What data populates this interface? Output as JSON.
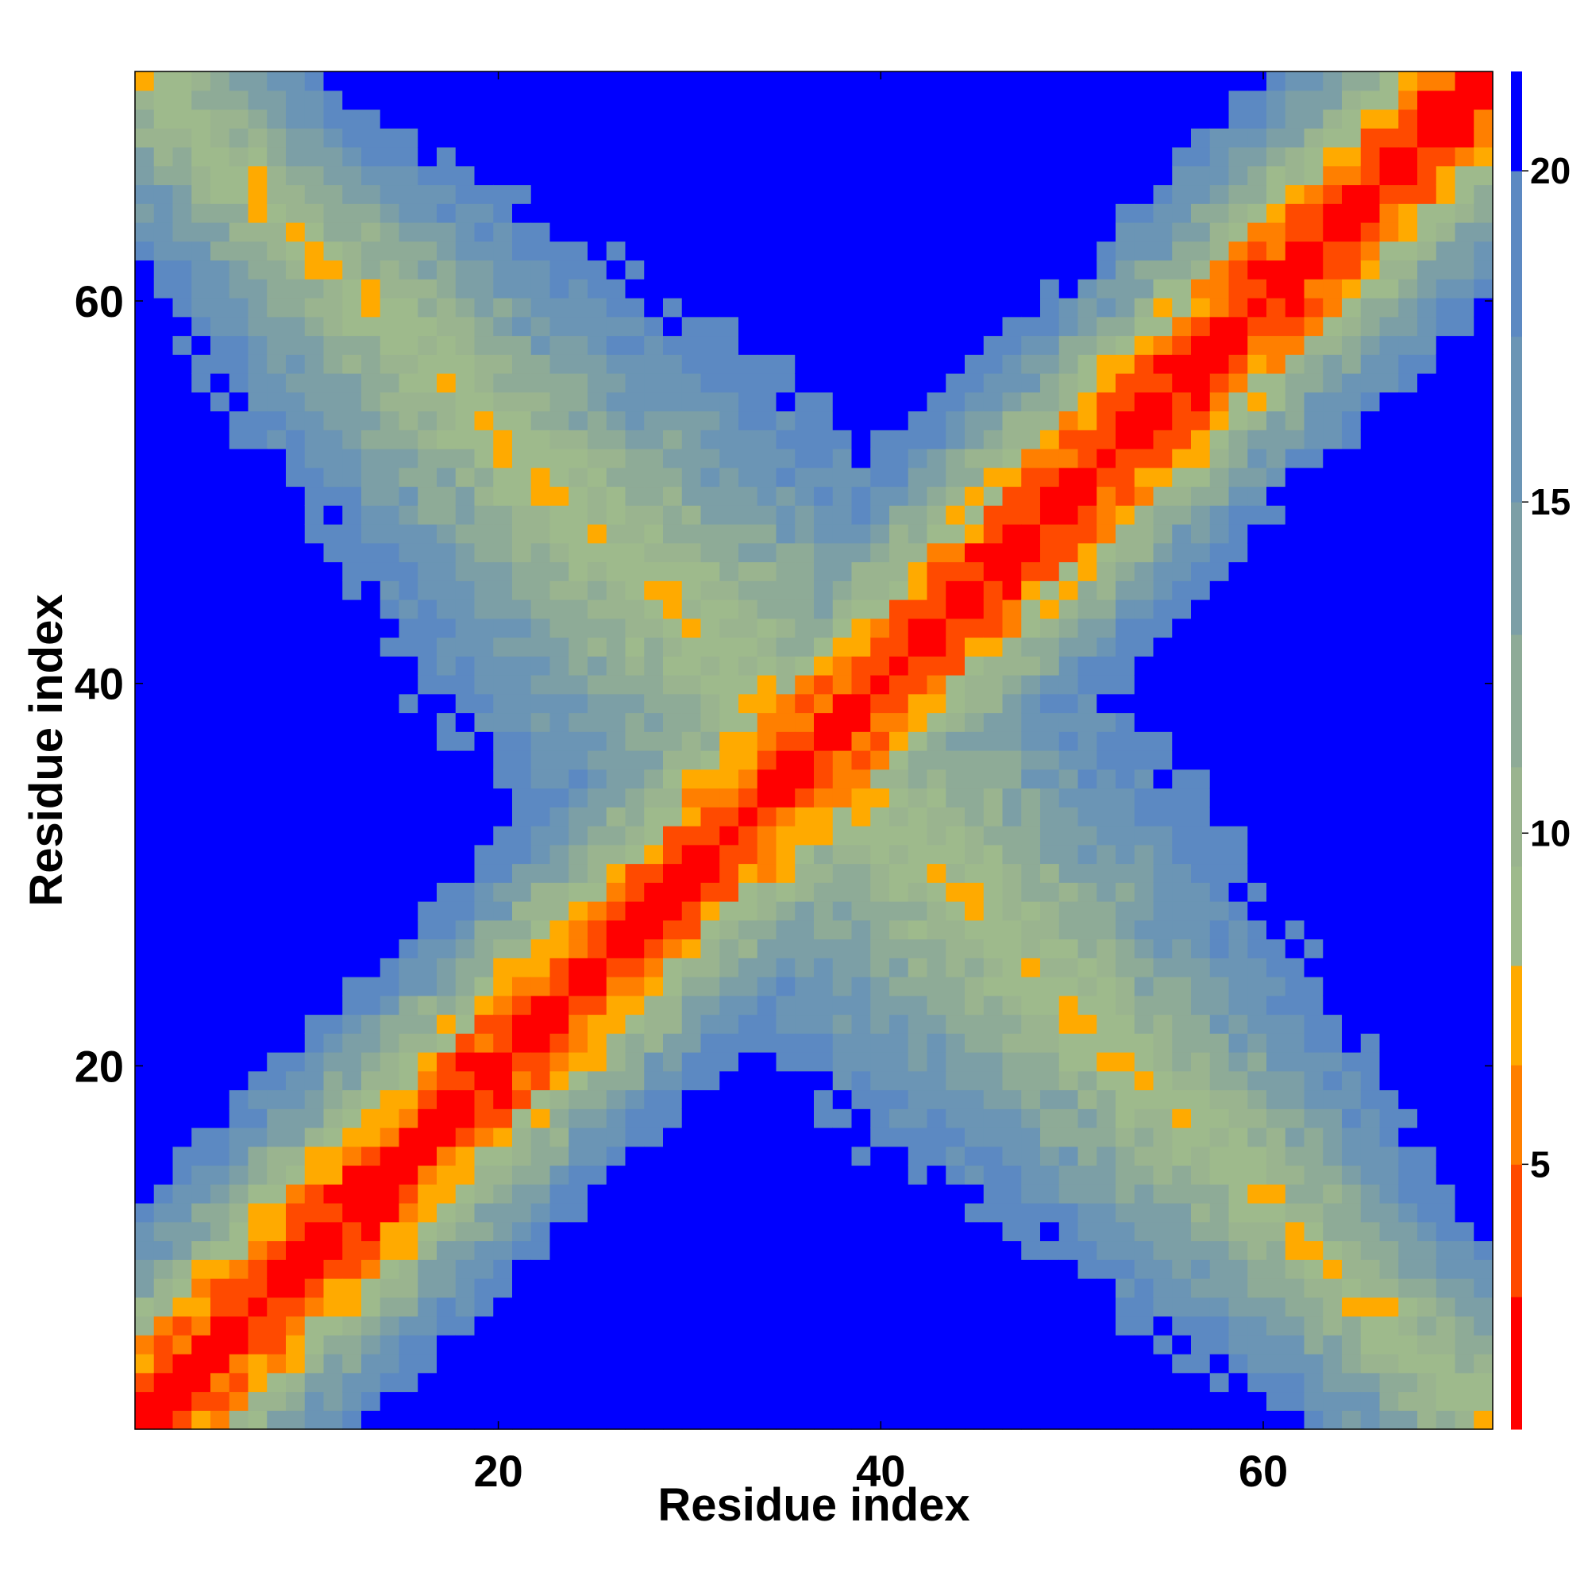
{
  "chart_data": {
    "type": "heatmap",
    "title": "",
    "xlabel": "Residue index",
    "ylabel": "Residue index",
    "n": 72,
    "xlim": [
      1,
      72
    ],
    "ylim": [
      1,
      72
    ],
    "x_ticks": [
      20,
      40,
      60
    ],
    "y_ticks": [
      20,
      40,
      60
    ],
    "x_tick_labels": [
      "20",
      "40",
      "60"
    ],
    "y_tick_labels": [
      "20",
      "40",
      "60"
    ],
    "colorbar": {
      "range": [
        1,
        21.5
      ],
      "ticks": [
        5,
        10,
        15,
        20
      ],
      "tick_labels": [
        "5",
        "10",
        "15",
        "20"
      ],
      "placement": "right"
    },
    "colorscale": [
      {
        "max": 3,
        "color": "#ff0000"
      },
      {
        "max": 5,
        "color": "#ff4a00"
      },
      {
        "max": 6.5,
        "color": "#ff7f00"
      },
      {
        "max": 8,
        "color": "#ffaa00"
      },
      {
        "max": 9.5,
        "color": "#9eba8c"
      },
      {
        "max": 11,
        "color": "#9ab48f"
      },
      {
        "max": 13,
        "color": "#8eab97"
      },
      {
        "max": 15,
        "color": "#7c9fa6"
      },
      {
        "max": 17.5,
        "color": "#6b95b5"
      },
      {
        "max": 20,
        "color": "#5c89c2"
      },
      {
        "max": 99,
        "color": "#0000ff"
      }
    ],
    "cutoff": 20,
    "description_values": {
      "diagonal_band": "distance rises from ~1 on the diagonal to >20 beyond ~13 residues away",
      "anti_diagonal_band": "distances 5–20 along the anti-diagonal (i + j ≈ 73)"
    }
  }
}
